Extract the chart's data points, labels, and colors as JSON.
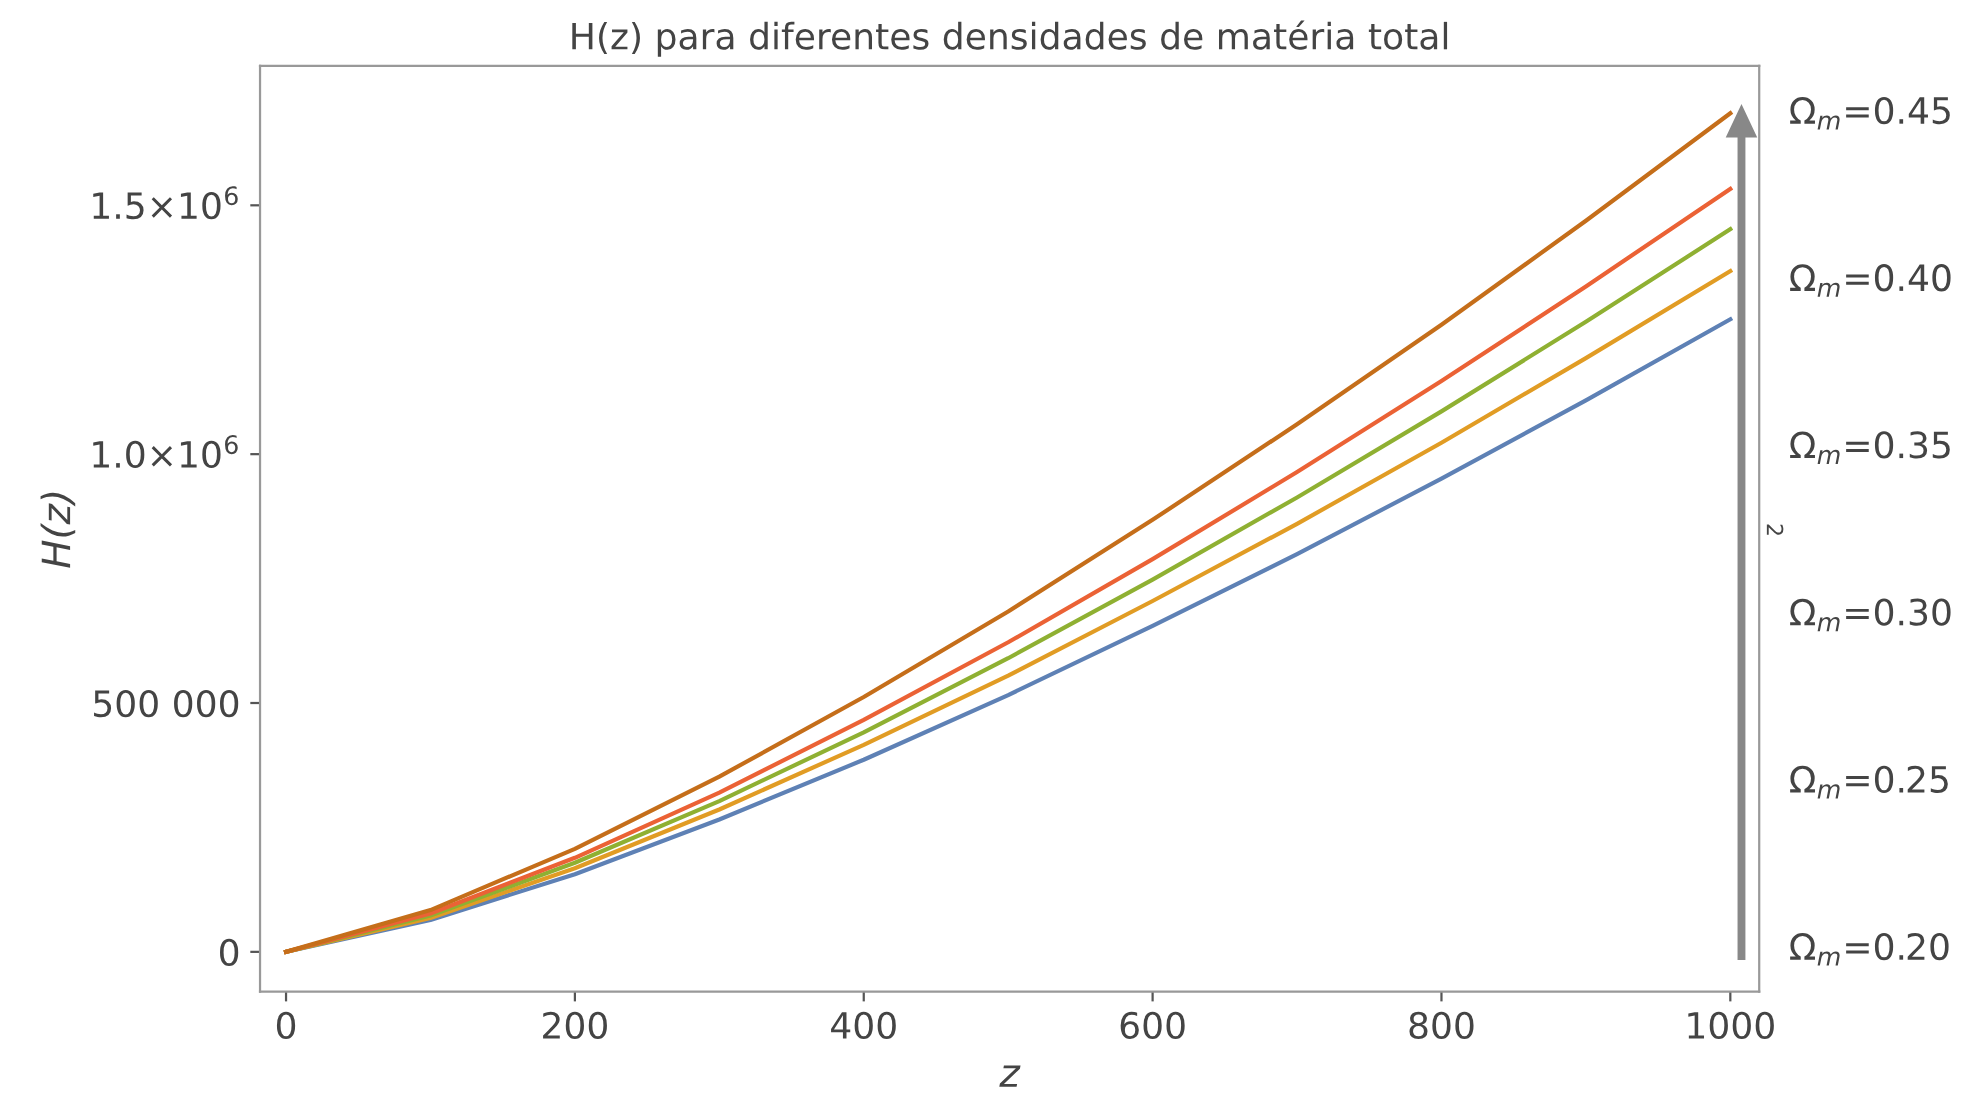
{
  "chart_data": {
    "type": "line",
    "title": "H(z) para diferentes densidades de matéria total",
    "xlabel": "z",
    "ylabel": "H(z)",
    "x": [
      0,
      100,
      200,
      300,
      400,
      500,
      600,
      700,
      800,
      900,
      1000
    ],
    "series": [
      {
        "color": "#5e81b5",
        "values": [
          0,
          64000,
          156000,
          266000,
          386000,
          516000,
          655000,
          799000,
          951000,
          1108000,
          1271000
        ]
      },
      {
        "color": "#e19c24",
        "values": [
          0,
          68000,
          168000,
          286000,
          416000,
          555000,
          705000,
          860000,
          1023000,
          1193000,
          1368000
        ]
      },
      {
        "color": "#8fb032",
        "values": [
          0,
          73000,
          179000,
          303000,
          441000,
          590000,
          748000,
          913000,
          1086000,
          1266000,
          1452000
        ]
      },
      {
        "color": "#eb6235",
        "values": [
          0,
          77000,
          189000,
          320000,
          466000,
          622000,
          789000,
          964000,
          1147000,
          1337000,
          1533000
        ]
      },
      {
        "color": "#c56e1a",
        "values": [
          0,
          84000,
          207000,
          352000,
          512000,
          684000,
          868000,
          1060000,
          1260000,
          1469000,
          1685000
        ]
      }
    ],
    "xlim": [
      -18,
      1020
    ],
    "xticks": [
      0,
      200,
      400,
      600,
      800,
      1000
    ],
    "ylim": [
      -80000,
      1780000
    ],
    "yticks": [
      0,
      {
        "value": 500000,
        "label": "500 000"
      },
      {
        "value": 1000000,
        "label": "1.0×10$^{6}$"
      },
      {
        "value": 1500000,
        "label": "1.5×10$^{6}$"
      }
    ],
    "grid": false,
    "legend": false,
    "marker": "none",
    "line_style": "solid",
    "annotations": [
      "Ω$_{m}$=0.45",
      "Ω$_{m}$=0.40",
      "Ω$_{m}$=0.35",
      "Ω$_{m}$=0.30",
      "Ω$_{m}$=0.25",
      "Ω$_{m}$=0.20",
      "2"
    ]
  }
}
